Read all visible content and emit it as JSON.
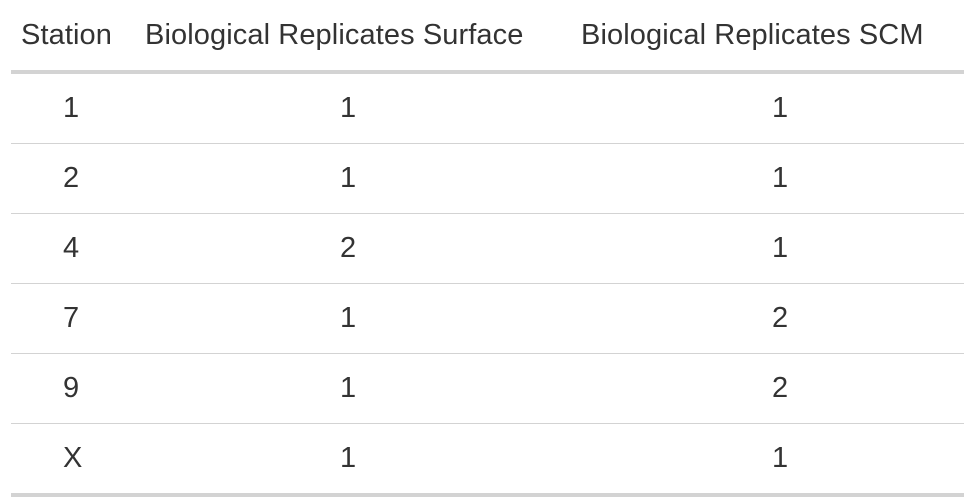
{
  "table": {
    "headers": {
      "station": "Station",
      "surface": "Biological Replicates Surface",
      "scm": "Biological Replicates SCM"
    },
    "rows": [
      {
        "station": "1",
        "surface": "1",
        "scm": "1"
      },
      {
        "station": "2",
        "surface": "1",
        "scm": "1"
      },
      {
        "station": "4",
        "surface": "2",
        "scm": "1"
      },
      {
        "station": "7",
        "surface": "1",
        "scm": "2"
      },
      {
        "station": "9",
        "surface": "1",
        "scm": "2"
      },
      {
        "station": "X",
        "surface": "1",
        "scm": "1"
      }
    ]
  }
}
